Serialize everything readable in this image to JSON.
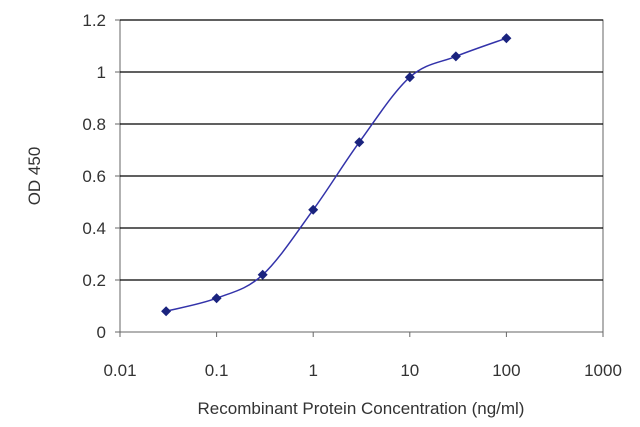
{
  "chart_data": {
    "type": "scatter",
    "xlabel": "Recombinant Protein Concentration (ng/ml)",
    "ylabel": "OD 450",
    "x_scale": "log",
    "xlim": [
      0.01,
      1000
    ],
    "ylim": [
      0,
      1.2
    ],
    "x_ticks": [
      "0.01",
      "0.1",
      "1",
      "10",
      "100",
      "1000"
    ],
    "y_ticks": [
      "0",
      "0.2",
      "0.4",
      "0.6",
      "0.8",
      "1",
      "1.2"
    ],
    "grid": "horizontal",
    "series": [
      {
        "x": [
          0.03,
          0.1,
          0.3,
          1,
          3,
          10,
          30,
          100
        ],
        "y": [
          0.08,
          0.13,
          0.22,
          0.47,
          0.73,
          0.98,
          1.06,
          1.13
        ]
      }
    ],
    "colors": {
      "line": "#3333aa",
      "marker": "#1a237e",
      "grid": "#000000"
    }
  }
}
